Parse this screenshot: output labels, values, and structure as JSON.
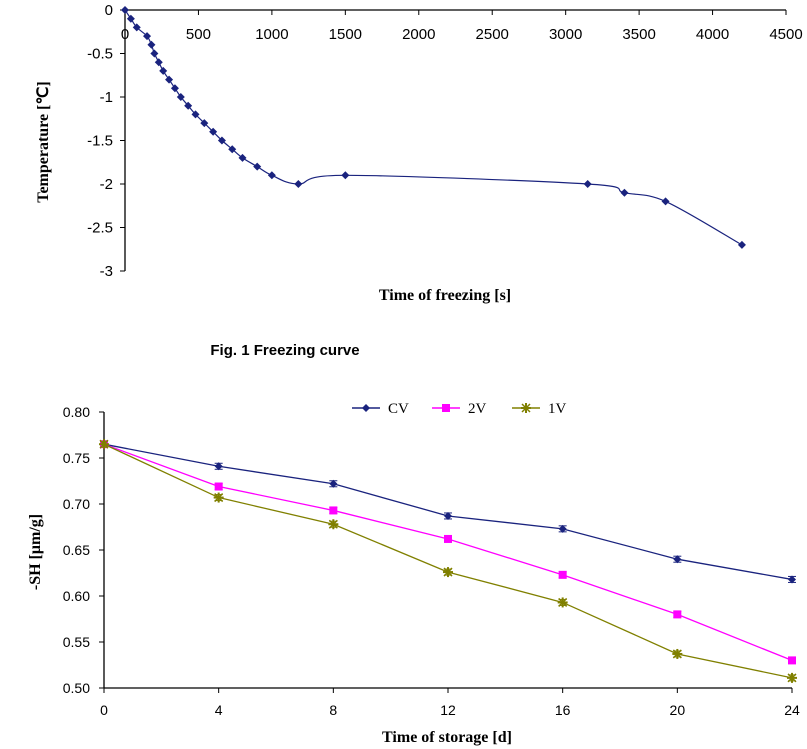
{
  "chart_data": [
    {
      "type": "line",
      "title": "",
      "xlabel": "Time of freezing [s]",
      "ylabel": "Temperature [℃]",
      "xlim": [
        0,
        4500
      ],
      "ylim": [
        -3,
        0
      ],
      "x_ticks": [
        "0",
        "500",
        "1000",
        "1500",
        "2000",
        "2500",
        "3000",
        "3500",
        "4000",
        "4500"
      ],
      "y_ticks": [
        "0",
        "-0.5",
        "-1",
        "-1.5",
        "-2",
        "-2.5",
        "-3"
      ],
      "caption": "Fig. 1 Freezing curve",
      "color": "#1a237e",
      "series": [
        {
          "name": "temperature",
          "points": [
            [
              0,
              0
            ],
            [
              40,
              -0.1
            ],
            [
              80,
              -0.2
            ],
            [
              150,
              -0.3
            ],
            [
              180,
              -0.4
            ],
            [
              200,
              -0.5
            ],
            [
              230,
              -0.6
            ],
            [
              260,
              -0.7
            ],
            [
              300,
              -0.8
            ],
            [
              340,
              -0.9
            ],
            [
              380,
              -1.0
            ],
            [
              430,
              -1.1
            ],
            [
              480,
              -1.2
            ],
            [
              540,
              -1.3
            ],
            [
              600,
              -1.4
            ],
            [
              660,
              -1.5
            ],
            [
              730,
              -1.6
            ],
            [
              800,
              -1.7
            ],
            [
              900,
              -1.8
            ],
            [
              1000,
              -1.9
            ],
            [
              1180,
              -2.0
            ],
            [
              1500,
              -1.9
            ],
            [
              3150,
              -2.0
            ],
            [
              3400,
              -2.1
            ],
            [
              3680,
              -2.2
            ],
            [
              4200,
              -2.7
            ]
          ]
        }
      ]
    },
    {
      "type": "line",
      "title": "",
      "xlabel": "Time of storage [d]",
      "ylabel": "-SH [μm/g]",
      "categories": [
        0,
        4,
        8,
        12,
        16,
        20,
        24
      ],
      "xlim": [
        0,
        24
      ],
      "ylim": [
        0.5,
        0.8
      ],
      "x_ticks": [
        "0",
        "4",
        "8",
        "12",
        "16",
        "20",
        "24"
      ],
      "y_ticks": [
        "0.80",
        "0.75",
        "0.70",
        "0.65",
        "0.60",
        "0.55",
        "0.50"
      ],
      "legend_position": "top",
      "series": [
        {
          "name": "CV",
          "color": "#1a237e",
          "marker": "diamond",
          "values": [
            0.765,
            0.741,
            0.722,
            0.687,
            0.673,
            0.64,
            0.618
          ]
        },
        {
          "name": "2V",
          "color": "#ff00ff",
          "marker": "square",
          "values": [
            0.765,
            0.719,
            0.693,
            0.662,
            0.623,
            0.58,
            0.53
          ]
        },
        {
          "name": "1V",
          "color": "#808000",
          "marker": "star",
          "values": [
            0.765,
            0.707,
            0.678,
            0.626,
            0.593,
            0.537,
            0.511
          ]
        }
      ]
    }
  ]
}
